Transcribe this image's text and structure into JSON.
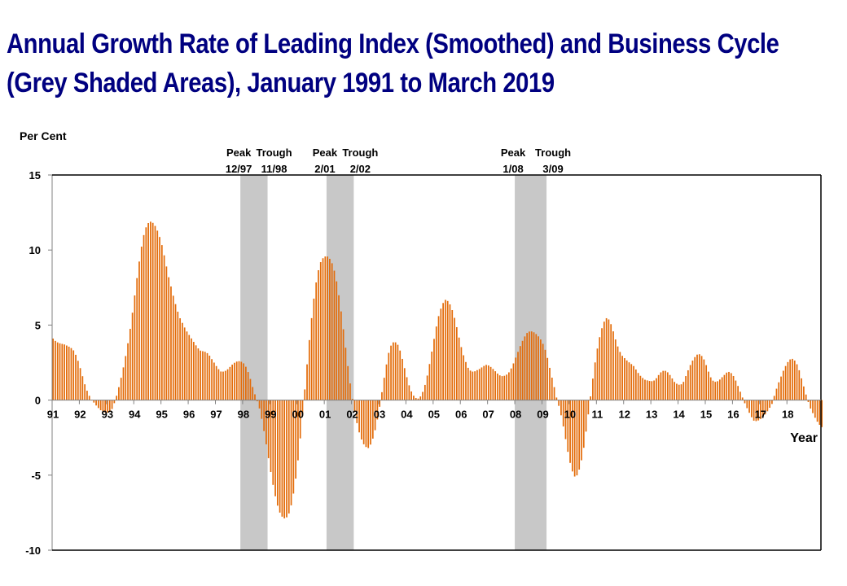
{
  "chart_data": {
    "type": "bar",
    "title_lines": [
      "Annual Growth Rate of Leading Index (Smoothed) and Business Cycle",
      "(Grey Shaded Areas), January 1991 to March 2019"
    ],
    "ylabel": "Per Cent",
    "xlabel": "Year",
    "ylim": [
      -10,
      15
    ],
    "yticks": [
      15,
      10,
      5,
      0,
      -5,
      -10
    ],
    "ytick_labels": [
      "15",
      "10",
      "5",
      "0",
      "-5",
      "-10"
    ],
    "x_start": "1991-01",
    "x_end": "2019-03",
    "xtick_labels": [
      "91",
      "92",
      "93",
      "94",
      "95",
      "96",
      "97",
      "98",
      "99",
      "00",
      "01",
      "02",
      "03",
      "04",
      "05",
      "06",
      "07",
      "08",
      "09",
      "10",
      "11",
      "12",
      "13",
      "14",
      "15",
      "16",
      "17",
      "18"
    ],
    "bar_color": "#E36C0A",
    "shade_color": "#C8C8C8",
    "grid": false,
    "recessions": [
      {
        "peak_label": "Peak",
        "trough_label": "Trough",
        "peak": "12/97",
        "trough": "11/98",
        "start_month": 83,
        "end_month": 95
      },
      {
        "peak_label": "Peak",
        "trough_label": "Trough",
        "peak": "2/01",
        "trough": "2/02",
        "start_month": 121,
        "end_month": 133
      },
      {
        "peak_label": "Peak",
        "trough_label": "Trough",
        "peak": "1/08",
        "trough": "3/09",
        "start_month": 204,
        "end_month": 218
      }
    ],
    "keypoints": [
      [
        0,
        4.1
      ],
      [
        1,
        3.9
      ],
      [
        2,
        3.8
      ],
      [
        3,
        3.75
      ],
      [
        4,
        3.7
      ],
      [
        5,
        3.6
      ],
      [
        6,
        3.5
      ],
      [
        7,
        3.3
      ],
      [
        8,
        2.9
      ],
      [
        9,
        2.3
      ],
      [
        10,
        1.6
      ],
      [
        11,
        0.9
      ],
      [
        12,
        0.4
      ],
      [
        13,
        0.05
      ],
      [
        14,
        -0.2
      ],
      [
        15,
        -0.45
      ],
      [
        16,
        -0.65
      ],
      [
        17,
        -0.8
      ],
      [
        18,
        -0.85
      ],
      [
        19,
        -0.8
      ],
      [
        20,
        -0.6
      ],
      [
        21,
        -0.1
      ],
      [
        22,
        0.6
      ],
      [
        23,
        1.4
      ],
      [
        24,
        2.3
      ],
      [
        25,
        3.3
      ],
      [
        26,
        4.5
      ],
      [
        27,
        5.9
      ],
      [
        28,
        7.4
      ],
      [
        29,
        8.9
      ],
      [
        30,
        10.2
      ],
      [
        31,
        11.2
      ],
      [
        32,
        11.75
      ],
      [
        33,
        11.9
      ],
      [
        34,
        11.8
      ],
      [
        35,
        11.5
      ],
      [
        36,
        11.0
      ],
      [
        37,
        10.3
      ],
      [
        38,
        9.4
      ],
      [
        39,
        8.4
      ],
      [
        40,
        7.6
      ],
      [
        41,
        6.8
      ],
      [
        42,
        6.1
      ],
      [
        43,
        5.5
      ],
      [
        44,
        5.1
      ],
      [
        45,
        4.7
      ],
      [
        46,
        4.4
      ],
      [
        47,
        4.1
      ],
      [
        48,
        3.8
      ],
      [
        49,
        3.5
      ],
      [
        50,
        3.3
      ],
      [
        51,
        3.25
      ],
      [
        52,
        3.2
      ],
      [
        53,
        3.0
      ],
      [
        54,
        2.7
      ],
      [
        55,
        2.4
      ],
      [
        56,
        2.1
      ],
      [
        57,
        1.9
      ],
      [
        58,
        1.9
      ],
      [
        59,
        2.0
      ],
      [
        60,
        2.2
      ],
      [
        61,
        2.4
      ],
      [
        62,
        2.55
      ],
      [
        63,
        2.6
      ],
      [
        64,
        2.55
      ],
      [
        65,
        2.4
      ],
      [
        66,
        2.0
      ],
      [
        67,
        1.4
      ],
      [
        68,
        0.7
      ],
      [
        69,
        0.1
      ],
      [
        70,
        -0.5
      ],
      [
        71,
        -1.4
      ],
      [
        72,
        -2.5
      ],
      [
        73,
        -3.7
      ],
      [
        74,
        -4.9
      ],
      [
        75,
        -6.0
      ],
      [
        76,
        -6.9
      ],
      [
        77,
        -7.5
      ],
      [
        78,
        -7.85
      ],
      [
        79,
        -7.9
      ],
      [
        80,
        -7.6
      ],
      [
        81,
        -6.9
      ],
      [
        82,
        -5.8
      ],
      [
        83,
        -4.3
      ],
      [
        84,
        -2.4
      ],
      [
        85,
        -0.3
      ],
      [
        86,
        1.9
      ],
      [
        87,
        4.0
      ],
      [
        88,
        5.9
      ],
      [
        89,
        7.5
      ],
      [
        90,
        8.6
      ],
      [
        91,
        9.3
      ],
      [
        92,
        9.55
      ],
      [
        93,
        9.6
      ],
      [
        94,
        9.4
      ],
      [
        95,
        9.0
      ],
      [
        96,
        8.2
      ],
      [
        97,
        7.0
      ],
      [
        98,
        5.6
      ],
      [
        99,
        4.0
      ],
      [
        100,
        2.4
      ],
      [
        101,
        0.9
      ],
      [
        102,
        -0.4
      ],
      [
        103,
        -1.4
      ],
      [
        104,
        -2.2
      ],
      [
        105,
        -2.8
      ],
      [
        106,
        -3.1
      ],
      [
        107,
        -3.2
      ],
      [
        108,
        -2.9
      ],
      [
        109,
        -2.3
      ],
      [
        110,
        -1.4
      ],
      [
        111,
        -0.3
      ],
      [
        112,
        1.0
      ],
      [
        113,
        2.2
      ],
      [
        114,
        3.2
      ],
      [
        115,
        3.8
      ],
      [
        116,
        3.9
      ],
      [
        117,
        3.7
      ],
      [
        118,
        3.2
      ],
      [
        119,
        2.4
      ],
      [
        120,
        1.6
      ],
      [
        121,
        0.9
      ],
      [
        122,
        0.4
      ],
      [
        123,
        0.15
      ],
      [
        124,
        0.1
      ],
      [
        125,
        0.3
      ],
      [
        126,
        0.8
      ],
      [
        127,
        1.6
      ],
      [
        128,
        2.6
      ],
      [
        129,
        3.7
      ],
      [
        130,
        4.8
      ],
      [
        131,
        5.7
      ],
      [
        132,
        6.3
      ],
      [
        133,
        6.7
      ],
      [
        134,
        6.6
      ],
      [
        135,
        6.3
      ],
      [
        136,
        5.7
      ],
      [
        137,
        4.9
      ],
      [
        138,
        4.0
      ],
      [
        139,
        3.2
      ],
      [
        140,
        2.6
      ],
      [
        141,
        2.1
      ],
      [
        142,
        1.9
      ],
      [
        143,
        1.9
      ],
      [
        144,
        2.0
      ],
      [
        145,
        2.1
      ],
      [
        146,
        2.25
      ],
      [
        147,
        2.35
      ],
      [
        148,
        2.3
      ],
      [
        149,
        2.15
      ],
      [
        150,
        1.95
      ],
      [
        151,
        1.75
      ],
      [
        152,
        1.6
      ],
      [
        153,
        1.6
      ],
      [
        154,
        1.7
      ],
      [
        155,
        1.9
      ],
      [
        156,
        2.3
      ],
      [
        157,
        2.8
      ],
      [
        158,
        3.3
      ],
      [
        159,
        3.8
      ],
      [
        160,
        4.2
      ],
      [
        161,
        4.5
      ],
      [
        162,
        4.6
      ],
      [
        163,
        4.55
      ],
      [
        164,
        4.4
      ],
      [
        165,
        4.2
      ],
      [
        166,
        3.9
      ],
      [
        167,
        3.4
      ],
      [
        168,
        2.7
      ],
      [
        169,
        1.8
      ],
      [
        170,
        1.0
      ],
      [
        171,
        0.1
      ],
      [
        172,
        -0.6
      ],
      [
        173,
        -1.5
      ],
      [
        174,
        -2.6
      ],
      [
        175,
        -3.7
      ],
      [
        176,
        -4.6
      ],
      [
        177,
        -5.1
      ],
      [
        178,
        -5.0
      ],
      [
        179,
        -4.4
      ],
      [
        180,
        -3.4
      ],
      [
        181,
        -2.0
      ],
      [
        182,
        -0.5
      ],
      [
        183,
        1.1
      ],
      [
        184,
        2.5
      ],
      [
        185,
        3.7
      ],
      [
        186,
        4.6
      ],
      [
        187,
        5.2
      ],
      [
        188,
        5.5
      ],
      [
        189,
        5.3
      ],
      [
        190,
        4.7
      ],
      [
        191,
        4.0
      ],
      [
        192,
        3.4
      ],
      [
        193,
        3.0
      ],
      [
        194,
        2.8
      ],
      [
        195,
        2.6
      ],
      [
        196,
        2.45
      ],
      [
        197,
        2.3
      ],
      [
        198,
        2.0
      ],
      [
        199,
        1.7
      ],
      [
        200,
        1.5
      ],
      [
        201,
        1.35
      ],
      [
        202,
        1.3
      ],
      [
        203,
        1.25
      ],
      [
        204,
        1.3
      ],
      [
        205,
        1.5
      ],
      [
        206,
        1.8
      ],
      [
        207,
        1.95
      ],
      [
        208,
        1.95
      ],
      [
        209,
        1.8
      ],
      [
        210,
        1.5
      ],
      [
        211,
        1.2
      ],
      [
        212,
        1.05
      ],
      [
        213,
        1.0
      ],
      [
        214,
        1.2
      ],
      [
        215,
        1.7
      ],
      [
        216,
        2.2
      ],
      [
        217,
        2.6
      ],
      [
        218,
        2.9
      ],
      [
        219,
        3.1
      ],
      [
        220,
        3.0
      ],
      [
        221,
        2.7
      ],
      [
        222,
        2.2
      ],
      [
        223,
        1.6
      ],
      [
        224,
        1.3
      ],
      [
        225,
        1.2
      ],
      [
        226,
        1.3
      ],
      [
        227,
        1.5
      ],
      [
        228,
        1.7
      ],
      [
        229,
        1.9
      ],
      [
        230,
        1.85
      ],
      [
        231,
        1.6
      ],
      [
        232,
        1.2
      ],
      [
        233,
        0.7
      ],
      [
        234,
        0.2
      ],
      [
        235,
        -0.3
      ],
      [
        236,
        -0.7
      ],
      [
        237,
        -1.1
      ],
      [
        238,
        -1.4
      ],
      [
        239,
        -1.4
      ],
      [
        240,
        -1.3
      ],
      [
        241,
        -1.1
      ],
      [
        242,
        -0.9
      ],
      [
        243,
        -0.6
      ],
      [
        244,
        -0.3
      ],
      [
        245,
        0.4
      ],
      [
        246,
        1.0
      ],
      [
        247,
        1.5
      ],
      [
        248,
        2.0
      ],
      [
        249,
        2.4
      ],
      [
        250,
        2.7
      ],
      [
        251,
        2.75
      ],
      [
        252,
        2.6
      ],
      [
        253,
        2.2
      ],
      [
        254,
        1.5
      ],
      [
        255,
        0.8
      ],
      [
        256,
        0.1
      ],
      [
        257,
        -0.5
      ],
      [
        258,
        -0.9
      ],
      [
        259,
        -1.3
      ],
      [
        260,
        -1.6
      ],
      [
        261,
        -1.8
      ]
    ],
    "month_scale_note": "keypoint index i maps to month i*(338/261) from Jan 1991"
  }
}
